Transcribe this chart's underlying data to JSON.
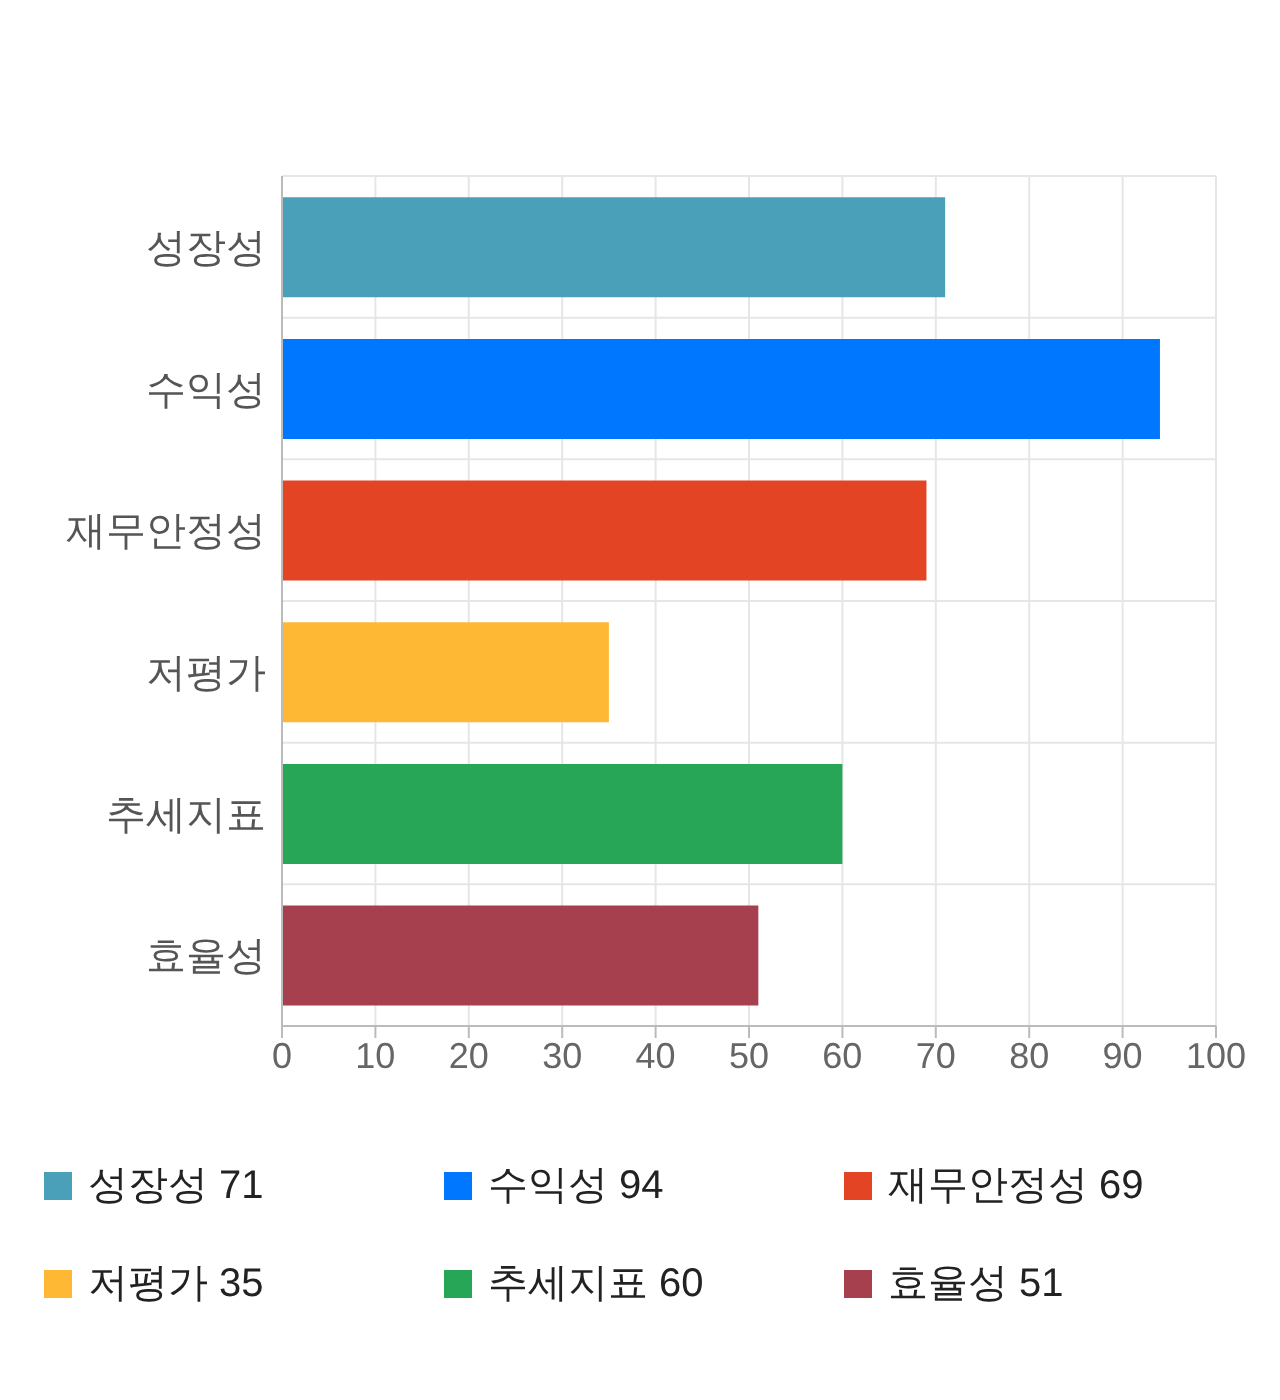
{
  "chart_data": {
    "type": "bar",
    "orientation": "horizontal",
    "stacked": true,
    "categories": [
      "성장성",
      "수익성",
      "재무안정성",
      "저평가",
      "추세지표",
      "효율성"
    ],
    "series": [
      {
        "name": "성장성 71",
        "color": "#4aa0b9",
        "values": [
          71,
          null,
          null,
          null,
          null,
          null
        ]
      },
      {
        "name": "수익성 94",
        "color": "#0077ff",
        "values": [
          null,
          94,
          null,
          null,
          null,
          null
        ]
      },
      {
        "name": "재무안정성 69",
        "color": "#e24424",
        "values": [
          null,
          null,
          69,
          null,
          null,
          null
        ]
      },
      {
        "name": "저평가 35",
        "color": "#ffb833",
        "values": [
          null,
          null,
          null,
          35,
          null,
          null
        ]
      },
      {
        "name": "추세지표 60",
        "color": "#28a657",
        "values": [
          null,
          null,
          null,
          null,
          60,
          null
        ]
      },
      {
        "name": "효율성 51",
        "color": "#a6404f",
        "values": [
          null,
          null,
          null,
          null,
          null,
          51
        ]
      }
    ],
    "xlim": [
      0,
      100
    ],
    "xticks": [
      0,
      10,
      20,
      30,
      40,
      50,
      60,
      70,
      80,
      90,
      100
    ],
    "grid": true,
    "legend": "bottom"
  }
}
